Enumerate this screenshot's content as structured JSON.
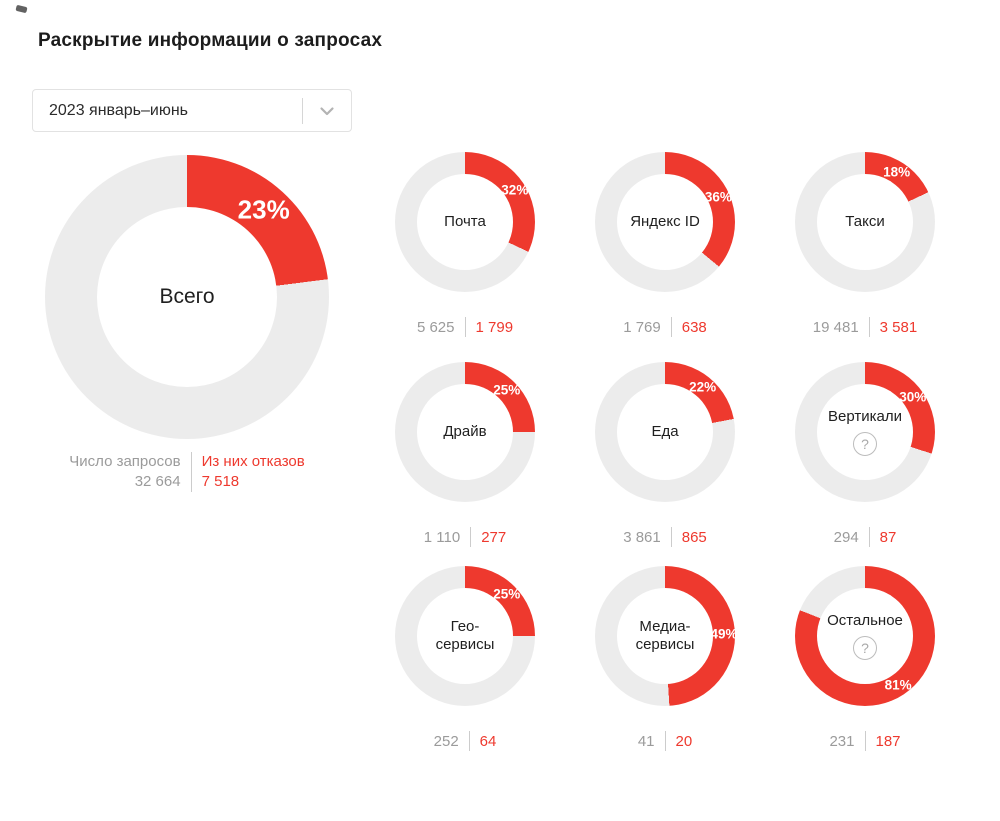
{
  "page": {
    "title": "Раскрытие информации о запросах",
    "period_selector": {
      "value": "2023 январь–июнь",
      "icon": "chevron-down-icon"
    },
    "legend": {
      "requests_label": "Число запросов",
      "refusals_label": "Из них отказов"
    },
    "help_icon_glyph": "?",
    "colors": {
      "accent_red": "#ee392e",
      "track_gray": "#ececec",
      "muted_text": "#9b9b9b"
    }
  },
  "chart_data": [
    {
      "type": "donut",
      "key": "total",
      "label_lines": [
        "Всего"
      ],
      "percent": 23,
      "requests": 32664,
      "refused": 7518,
      "requests_display": "32 664",
      "refused_display": "7 518",
      "variant": "large",
      "has_help": false
    },
    {
      "type": "donut",
      "key": "mail",
      "label_lines": [
        "Почта"
      ],
      "percent": 32,
      "requests": 5625,
      "refused": 1799,
      "requests_display": "5 625",
      "refused_display": "1 799",
      "variant": "small",
      "has_help": false
    },
    {
      "type": "donut",
      "key": "yandex-id",
      "label_lines": [
        "Яндекс ID"
      ],
      "percent": 36,
      "requests": 1769,
      "refused": 638,
      "requests_display": "1 769",
      "refused_display": "638",
      "variant": "small",
      "has_help": false
    },
    {
      "type": "donut",
      "key": "taxi",
      "label_lines": [
        "Такси"
      ],
      "percent": 18,
      "requests": 19481,
      "refused": 3581,
      "requests_display": "19 481",
      "refused_display": "3 581",
      "variant": "small",
      "has_help": false
    },
    {
      "type": "donut",
      "key": "drive",
      "label_lines": [
        "Драйв"
      ],
      "percent": 25,
      "requests": 1110,
      "refused": 277,
      "requests_display": "1 110",
      "refused_display": "277",
      "variant": "small",
      "has_help": false
    },
    {
      "type": "donut",
      "key": "food",
      "label_lines": [
        "Еда"
      ],
      "percent": 22,
      "requests": 3861,
      "refused": 865,
      "requests_display": "3 861",
      "refused_display": "865",
      "variant": "small",
      "has_help": false
    },
    {
      "type": "donut",
      "key": "verticals",
      "label_lines": [
        "Вертикали"
      ],
      "percent": 30,
      "requests": 294,
      "refused": 87,
      "requests_display": "294",
      "refused_display": "87",
      "variant": "small",
      "has_help": true
    },
    {
      "type": "donut",
      "key": "geo-services",
      "label_lines": [
        "Гео-",
        "сервисы"
      ],
      "percent": 25,
      "requests": 252,
      "refused": 64,
      "requests_display": "252",
      "refused_display": "64",
      "variant": "small",
      "has_help": false
    },
    {
      "type": "donut",
      "key": "media-services",
      "label_lines": [
        "Медиа-",
        "сервисы"
      ],
      "percent": 49,
      "requests": 41,
      "refused": 20,
      "requests_display": "41",
      "refused_display": "20",
      "variant": "small",
      "has_help": false
    },
    {
      "type": "donut",
      "key": "other",
      "label_lines": [
        "Остальное"
      ],
      "percent": 81,
      "requests": 231,
      "refused": 187,
      "requests_display": "231",
      "refused_display": "187",
      "variant": "small",
      "has_help": true
    }
  ]
}
